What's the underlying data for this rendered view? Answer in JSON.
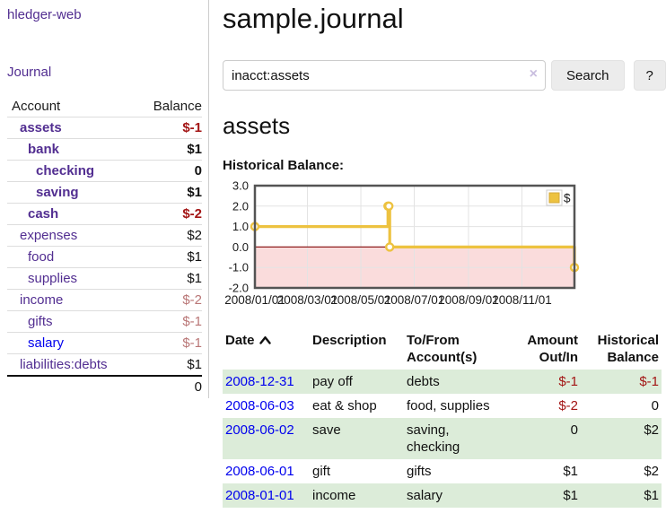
{
  "app": {
    "title": "hledger-web",
    "nav_journal": "Journal"
  },
  "sidebar": {
    "columns": {
      "account": "Account",
      "balance": "Balance"
    },
    "accounts": [
      {
        "name": "assets",
        "indent": 1,
        "bold": true,
        "balance": "$-1",
        "bal_class": "neg",
        "link_class": ""
      },
      {
        "name": "bank",
        "indent": 2,
        "bold": true,
        "balance": "$1",
        "bal_class": "",
        "link_class": ""
      },
      {
        "name": "checking",
        "indent": 3,
        "bold": true,
        "balance": "0",
        "bal_class": "",
        "link_class": ""
      },
      {
        "name": "saving",
        "indent": 3,
        "bold": true,
        "balance": "$1",
        "bal_class": "",
        "link_class": ""
      },
      {
        "name": "cash",
        "indent": 2,
        "bold": true,
        "balance": "$-2",
        "bal_class": "neg",
        "link_class": ""
      },
      {
        "name": "expenses",
        "indent": 1,
        "bold": false,
        "balance": "$2",
        "bal_class": "",
        "link_class": ""
      },
      {
        "name": "food",
        "indent": 2,
        "bold": false,
        "balance": "$1",
        "bal_class": "",
        "link_class": ""
      },
      {
        "name": "supplies",
        "indent": 2,
        "bold": false,
        "balance": "$1",
        "bal_class": "",
        "link_class": ""
      },
      {
        "name": "income",
        "indent": 1,
        "bold": false,
        "balance": "$-2",
        "bal_class": "neg-soft",
        "link_class": ""
      },
      {
        "name": "gifts",
        "indent": 2,
        "bold": false,
        "balance": "$-1",
        "bal_class": "neg-soft",
        "link_class": ""
      },
      {
        "name": "salary",
        "indent": 2,
        "bold": false,
        "balance": "$-1",
        "bal_class": "neg-soft",
        "link_class": "blue"
      },
      {
        "name": "liabilities:debts",
        "indent": 1,
        "bold": false,
        "balance": "$1",
        "bal_class": "",
        "link_class": ""
      }
    ],
    "total": "0"
  },
  "main": {
    "title": "sample.journal",
    "search": {
      "value": "inacct:assets",
      "clear_icon": "×",
      "button_label": "Search",
      "help_label": "?"
    },
    "account_heading": "assets",
    "chart_label": "Historical Balance:"
  },
  "chart_data": {
    "type": "line",
    "step": true,
    "title": "Historical Balance",
    "legend": "$",
    "legend_position": "top-right",
    "grid": true,
    "x_start": "2008-01-01",
    "x_end": "2008-12-31",
    "x_ticks": [
      "2008/01/01",
      "2008/03/01",
      "2008/05/01",
      "2008/07/01",
      "2008/09/01",
      "2008/11/01"
    ],
    "y_ticks": [
      3,
      2,
      1,
      0,
      -1,
      -2
    ],
    "ylim": [
      -2,
      3
    ],
    "series": [
      {
        "name": "$",
        "color": "#EDC240",
        "points": [
          [
            "2008-01-01",
            1
          ],
          [
            "2008-06-01",
            2
          ],
          [
            "2008-06-02",
            2
          ],
          [
            "2008-06-03",
            0
          ],
          [
            "2008-12-31",
            -1
          ]
        ]
      }
    ],
    "negative_fill": "#fadcdc",
    "zero_line_color": "#8f1e1e",
    "border_color": "#545454"
  },
  "register": {
    "columns": [
      {
        "label": "Date",
        "label2": "",
        "align": "left",
        "sortable": true
      },
      {
        "label": "Description",
        "label2": "",
        "align": "left",
        "sortable": false
      },
      {
        "label": "To/From",
        "label2": "Account(s)",
        "align": "left",
        "sortable": false
      },
      {
        "label": "Amount",
        "label2": "Out/In",
        "align": "right",
        "sortable": false
      },
      {
        "label": "Historical",
        "label2": "Balance",
        "align": "right",
        "sortable": false
      }
    ],
    "rows": [
      {
        "date": "2008-12-31",
        "description": "pay off",
        "accounts": "debts",
        "amount": "$-1",
        "amount_class": "neg",
        "balance": "$-1",
        "balance_class": "neg",
        "shaded": true
      },
      {
        "date": "2008-06-03",
        "description": "eat & shop",
        "accounts": "food, supplies",
        "amount": "$-2",
        "amount_class": "neg",
        "balance": "0",
        "balance_class": "",
        "shaded": false
      },
      {
        "date": "2008-06-02",
        "description": "save",
        "accounts": "saving, checking",
        "amount": "0",
        "amount_class": "",
        "balance": "$2",
        "balance_class": "",
        "shaded": true
      },
      {
        "date": "2008-06-01",
        "description": "gift",
        "accounts": "gifts",
        "amount": "$1",
        "amount_class": "",
        "balance": "$2",
        "balance_class": "",
        "shaded": false
      },
      {
        "date": "2008-01-01",
        "description": "income",
        "accounts": "salary",
        "amount": "$1",
        "amount_class": "",
        "balance": "$1",
        "balance_class": "",
        "shaded": true
      }
    ]
  }
}
